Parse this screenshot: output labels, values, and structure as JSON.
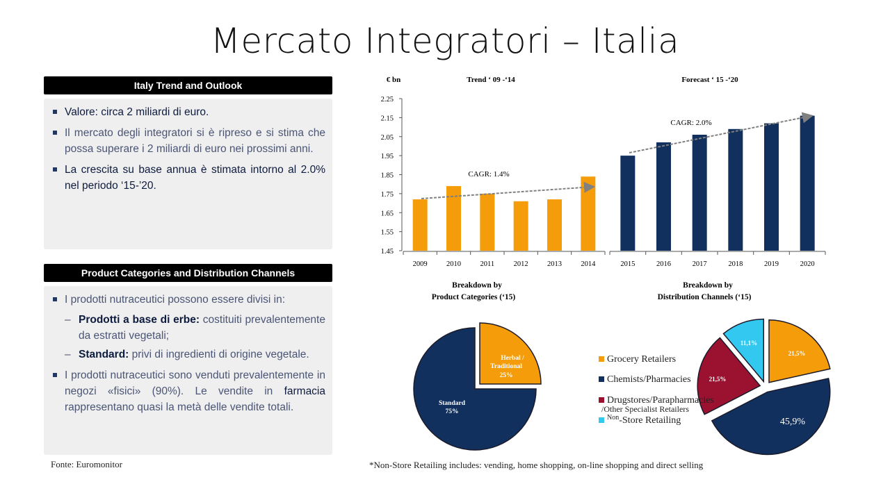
{
  "title": "Mercato Integratori – Italia",
  "section1": {
    "header": "Italy Trend and Outlook",
    "bullets": [
      "Valore: circa 2 miliardi di euro.",
      "Il mercato degli integratori si è ripreso e si stima che possa superare i 2 miliardi di euro nei prossimi anni.",
      "La crescita su base annua è stimata intorno al 2.0% nel periodo ‘15-’20."
    ]
  },
  "section2": {
    "header": "Product Categories and Distribution Channels",
    "bullet1": "I prodotti nutraceutici possono essere divisi in:",
    "sub1_bold": "Prodotti a base di erbe:",
    "sub1_rest": " costituiti prevalentemente da estratti vegetali;",
    "sub2_bold": "Standard:",
    "sub2_rest": " privi di ingredienti di origine vegetale.",
    "bullet2_a": "I prodotti nutraceutici sono venduti prevalentemente in negozi «fisici» (90%). Le vendite in ",
    "bullet2_bold": "farmacia",
    "bullet2_b": " rappresentano quasi la metà delle vendite totali.",
    "dash": "–"
  },
  "source": "Fonte: Euromonitor",
  "footnote": "*Non-Store Retailing includes: vending, home shopping, on-line shopping and direct selling",
  "colors": {
    "orange": "#f59c0b",
    "navy": "#12305e",
    "red": "#9a1230",
    "cyan": "#33c8f0",
    "arrow": "#808080"
  },
  "chart_data": [
    {
      "type": "bar",
      "title": "Trend ‘ 09 -‘14",
      "ylabel": "€ bn",
      "ylim": [
        1.45,
        2.25
      ],
      "yticks": [
        "2.25",
        "2.15",
        "2.05",
        "1.95",
        "1.85",
        "1.75",
        "1.65",
        "1.55",
        "1.45"
      ],
      "categories": [
        "2009",
        "2010",
        "2011",
        "2012",
        "2013",
        "2014"
      ],
      "values": [
        1.72,
        1.79,
        1.75,
        1.71,
        1.72,
        1.84
      ],
      "annotation": "CAGR: 1.4%"
    },
    {
      "type": "bar",
      "title": "Forecast ‘ 15 -‘20",
      "ylim": [
        1.45,
        2.25
      ],
      "categories": [
        "2015",
        "2016",
        "2017",
        "2018",
        "2019",
        "2020"
      ],
      "values": [
        1.95,
        2.02,
        2.06,
        2.09,
        2.12,
        2.16
      ],
      "annotation": "CAGR: 2.0%"
    },
    {
      "type": "pie",
      "title_line1": "Breakdown by",
      "title_line2": "Product Categories  (‘15)",
      "slices": [
        {
          "label_line1": "Herbal /",
          "label_line2": "Traditional",
          "value": 25,
          "value_label": "25%"
        },
        {
          "label_line1": "Standard",
          "label_line2": "",
          "value": 75,
          "value_label": "75%"
        }
      ]
    },
    {
      "type": "pie",
      "title_line1": "Breakdown by",
      "title_line2": "Distribution Channels  (‘15)",
      "slices": [
        {
          "name": "Grocery Retailers",
          "value": 21.5,
          "value_label": "21,5%"
        },
        {
          "name": "Chemists/Pharmacies",
          "value": 45.9,
          "value_label": "45,9%"
        },
        {
          "name": "Drugstores/Parapharmacies",
          "name_extra": "/Other Specialist Retailers",
          "value": 21.5,
          "value_label": "21,5%"
        },
        {
          "name_prefix": "Non",
          "name": "-Store Retailing",
          "value": 11.1,
          "value_label": "11,1%"
        }
      ]
    }
  ]
}
